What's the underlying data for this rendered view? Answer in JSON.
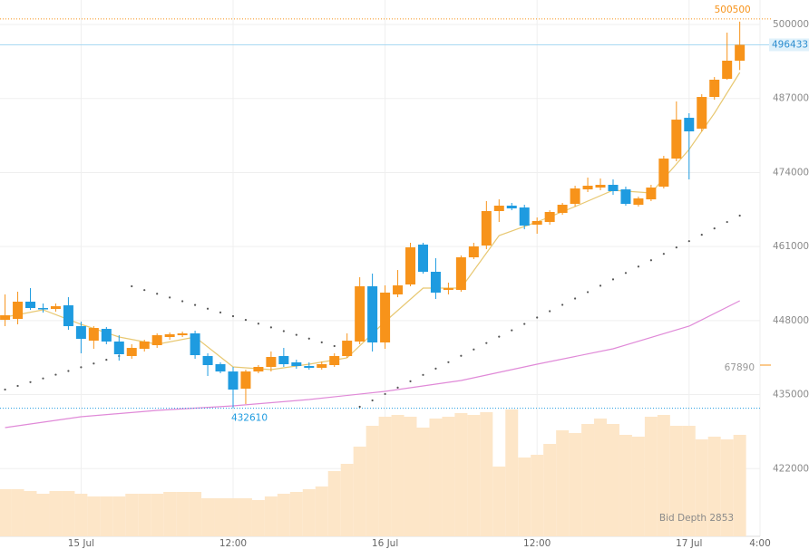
{
  "chart_data": {
    "type": "candlestick",
    "up_color": "#f7931a",
    "down_color": "#1e9be0",
    "open": [
      448130,
      448290,
      451320,
      450200,
      450040,
      450680,
      447020,
      444470,
      446540,
      444320,
      441770,
      443040,
      443680,
      445110,
      445430,
      445750,
      441770,
      440340,
      439060,
      436040,
      439060,
      439860,
      441770,
      440660,
      440020,
      439700,
      440180,
      441770,
      444320,
      454020,
      444160,
      452590,
      454340,
      461340,
      456570,
      453380,
      453380,
      459110,
      461180,
      467230,
      468180,
      467860,
      464840,
      465320,
      466910,
      468500,
      471040,
      471360,
      471840,
      471040,
      468340,
      469290,
      471520,
      476450,
      483610,
      481700,
      487270,
      490450,
      493640
    ],
    "high": [
      452590,
      453070,
      453700,
      451000,
      451000,
      452110,
      447820,
      447020,
      446860,
      445430,
      443840,
      444630,
      445750,
      445910,
      446070,
      446220,
      442250,
      440660,
      439860,
      439380,
      440180,
      442570,
      443200,
      441130,
      440660,
      440810,
      442250,
      445750,
      455610,
      456250,
      454180,
      456880,
      461660,
      461660,
      458950,
      454660,
      459430,
      461660,
      468980,
      469290,
      468660,
      468340,
      466110,
      467380,
      468660,
      471680,
      473110,
      472950,
      472790,
      471520,
      469770,
      471840,
      476930,
      486480,
      484410,
      487750,
      490770,
      498570,
      500500
    ],
    "low": [
      447020,
      447340,
      449880,
      449410,
      449570,
      446380,
      442250,
      443040,
      443840,
      440970,
      441290,
      442570,
      443200,
      444630,
      445110,
      441290,
      438270,
      438750,
      432610,
      433340,
      438750,
      439060,
      439860,
      439540,
      439380,
      439380,
      439860,
      441450,
      443840,
      442570,
      443040,
      452110,
      454020,
      456250,
      451790,
      452590,
      453070,
      458790,
      460540,
      465320,
      467380,
      464040,
      463250,
      464840,
      466590,
      468020,
      470570,
      470890,
      470090,
      468180,
      468020,
      468980,
      471200,
      475980,
      472790,
      481230,
      486800,
      490300,
      492000
    ],
    "close": [
      448930,
      451320,
      450200,
      450040,
      450520,
      447020,
      444790,
      446700,
      444320,
      442090,
      443200,
      444320,
      445430,
      445590,
      445750,
      441930,
      440180,
      439060,
      435880,
      439060,
      439860,
      441610,
      440340,
      440020,
      439700,
      440340,
      441770,
      444470,
      454020,
      444160,
      452910,
      454180,
      460860,
      456570,
      452910,
      453700,
      459110,
      461020,
      467230,
      468180,
      467700,
      464680,
      465480,
      467070,
      468340,
      471200,
      471680,
      471840,
      470730,
      468500,
      469450,
      471360,
      476450,
      483290,
      481230,
      487270,
      490300,
      493640,
      496433
    ],
    "volume": [
      18980,
      18980,
      18250,
      17155,
      18250,
      18250,
      17155,
      16060,
      16060,
      16060,
      17155,
      17155,
      17155,
      17885,
      17885,
      17885,
      15330,
      15330,
      15330,
      15330,
      14600,
      16060,
      17155,
      17885,
      18980,
      20075,
      26280,
      29200,
      36135,
      44530,
      48180,
      48910,
      48180,
      43800,
      47450,
      48180,
      49640,
      48910,
      50005,
      28105,
      51100,
      31755,
      32850,
      37230,
      42705,
      41610,
      45260,
      47450,
      45260,
      40880,
      40150,
      48180,
      48910,
      44530,
      44530,
      39055,
      40150,
      39055,
      40880
    ],
    "volume_color": "#fde6c8",
    "vlim": [
      0,
      67890
    ],
    "vticks": [
      67890
    ],
    "lines": [
      {
        "color": "#e8c872",
        "x": [
          0,
          3,
          6,
          9,
          12,
          15,
          18,
          21,
          24,
          27,
          30,
          33,
          36,
          39,
          42,
          45,
          48,
          51,
          54,
          56,
          58
        ],
        "values": [
          448610,
          449880,
          447340,
          445110,
          443840,
          445110,
          439860,
          439380,
          440340,
          441450,
          447820,
          453700,
          453700,
          462930,
          465320,
          468020,
          470890,
          470410,
          478040,
          484410,
          491570
        ]
      },
      {
        "color": "#e08ad8",
        "x": [
          0,
          6,
          12,
          18,
          24,
          30,
          36,
          42,
          48,
          54,
          58
        ],
        "values": [
          429200,
          431110,
          432220,
          433020,
          434130,
          435560,
          437470,
          440340,
          443040,
          447020,
          451470
        ]
      }
    ],
    "dots": {
      "color": "#555555",
      "values": [
        435880,
        436530,
        437190,
        437840,
        438500,
        439150,
        439800,
        440460,
        441110,
        441770,
        454020,
        453360,
        452710,
        452050,
        451400,
        450740,
        450080,
        449430,
        448770,
        448120,
        447460,
        446800,
        446150,
        445490,
        444840,
        444180,
        443520,
        null,
        432860,
        433980,
        435100,
        436220,
        437340,
        438460,
        439570,
        440690,
        441810,
        442930,
        444050,
        445170,
        446290,
        447410,
        448530,
        449650,
        450770,
        451880,
        453000,
        454120,
        455240,
        456360,
        457480,
        458600,
        459720,
        460840,
        461950,
        463070,
        464190,
        465310,
        466430
      ]
    },
    "ylim": [
      410110,
      504300
    ],
    "yticks": [
      500000,
      487000,
      474000,
      461000,
      448000,
      435000,
      422000
    ],
    "xlim": [
      -0.4,
      59.6
    ],
    "xticks": [
      {
        "value": 6,
        "label": "15 Jul"
      },
      {
        "value": 18,
        "label": "12:00"
      },
      {
        "value": 30,
        "label": "16 Jul"
      },
      {
        "value": 42,
        "label": "12:00"
      },
      {
        "value": 54,
        "label": "17 Jul"
      },
      {
        "value": 59.6,
        "label": "4:00"
      }
    ],
    "grid": true,
    "depth_label": "Bid Depth 2853"
  }
}
